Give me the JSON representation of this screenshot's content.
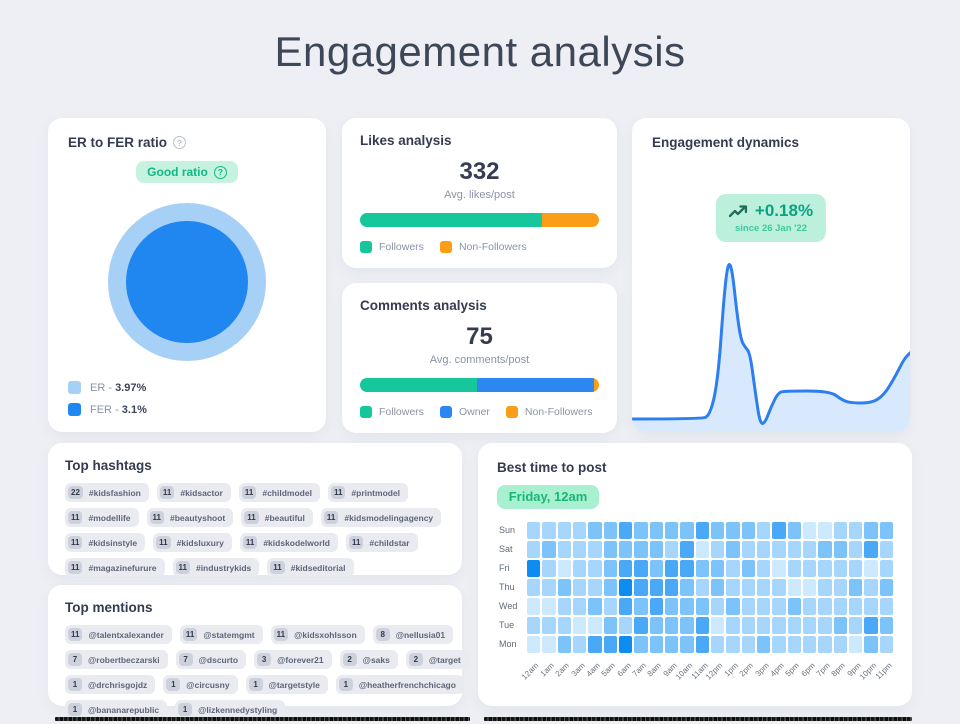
{
  "page": {
    "title": "Engagement analysis"
  },
  "colors": {
    "page_bg": "#edeff4",
    "card_bg": "#ffffff",
    "green": "#15c79b",
    "orange": "#fb9e17",
    "blue": "#2d87f0",
    "er_light_blue": "#a7d0f7",
    "fer_blue": "#2187f0",
    "mint_badge_bg": "#c5f3e0",
    "mint_text": "#12b886",
    "line_blue": "#2d7ef0",
    "line_fill": "#d9e9fd",
    "heat_palette": [
      "#cde9fe",
      "#a6d6fc",
      "#7cc3fa",
      "#4aa9f7",
      "#0d8cf2"
    ]
  },
  "er_card": {
    "title": "ER to FER ratio",
    "badge": "Good ratio",
    "legend": [
      {
        "label": "ER - ",
        "value": "3.97%",
        "color": "#a7d0f7"
      },
      {
        "label": "FER - ",
        "value": "3.1%",
        "color": "#2187f0"
      }
    ]
  },
  "likes_card": {
    "title": "Likes analysis",
    "value": "332",
    "caption": "Avg. likes/post",
    "segments": [
      {
        "name": "Followers",
        "pct": 76,
        "color": "#15c79b"
      },
      {
        "name": "Non-Followers",
        "pct": 24,
        "color": "#fb9e17"
      }
    ]
  },
  "comments_card": {
    "title": "Comments analysis",
    "value": "75",
    "caption": "Avg. comments/post",
    "segments": [
      {
        "name": "Followers",
        "pct": 49,
        "color": "#15c79b"
      },
      {
        "name": "Owner",
        "pct": 49,
        "color": "#2d87f0"
      },
      {
        "name": "Non-Followers",
        "pct": 2,
        "color": "#fb9e17"
      }
    ]
  },
  "dynamics_card": {
    "title": "Engagement dynamics",
    "delta": "+0.18%",
    "since": "since 26 Jan '22",
    "points": [
      [
        0,
        167
      ],
      [
        68,
        167
      ],
      [
        78,
        164
      ],
      [
        86,
        128
      ],
      [
        92,
        44
      ],
      [
        96,
        10
      ],
      [
        100,
        16
      ],
      [
        105,
        62
      ],
      [
        109,
        88
      ],
      [
        113,
        95
      ],
      [
        118,
        101
      ],
      [
        123,
        138
      ],
      [
        128,
        172
      ],
      [
        133,
        171
      ],
      [
        139,
        155
      ],
      [
        146,
        141
      ],
      [
        152,
        139
      ],
      [
        198,
        139
      ],
      [
        210,
        148
      ],
      [
        219,
        151
      ],
      [
        240,
        151
      ],
      [
        252,
        143
      ],
      [
        263,
        125
      ],
      [
        272,
        107
      ],
      [
        278,
        101
      ]
    ]
  },
  "hashtags_card": {
    "title": "Top hashtags",
    "rows": [
      [
        [
          "22",
          "#kidsfashion"
        ],
        [
          "11",
          "#kidsactor"
        ],
        [
          "11",
          "#childmodel"
        ],
        [
          "11",
          "#printmodel"
        ]
      ],
      [
        [
          "11",
          "#modellife"
        ],
        [
          "11",
          "#beautyshoot"
        ],
        [
          "11",
          "#beautiful"
        ],
        [
          "11",
          "#kidsmodelingagency"
        ]
      ],
      [
        [
          "11",
          "#kidsinstyle"
        ],
        [
          "11",
          "#kidsluxury"
        ],
        [
          "11",
          "#kidskodelworld"
        ],
        [
          "11",
          "#childstar"
        ]
      ],
      [
        [
          "11",
          "#magazinefurure"
        ],
        [
          "11",
          "#industrykids"
        ],
        [
          "11",
          "#kidseditorial"
        ]
      ]
    ]
  },
  "mentions_card": {
    "title": "Top mentions",
    "rows": [
      [
        [
          "11",
          "@talentxalexander"
        ],
        [
          "11",
          "@statemgmt"
        ],
        [
          "11",
          "@kidsxohlsson"
        ],
        [
          "8",
          "@nellusia01"
        ]
      ],
      [
        [
          "7",
          "@robertbeczarski"
        ],
        [
          "7",
          "@dscurto"
        ],
        [
          "3",
          "@forever21"
        ],
        [
          "2",
          "@saks"
        ],
        [
          "2",
          "@target"
        ]
      ],
      [
        [
          "1",
          "@drchrisgojdz"
        ],
        [
          "1",
          "@circusny"
        ],
        [
          "1",
          "@targetstyle"
        ],
        [
          "1",
          "@heatherfrenchchicago"
        ]
      ],
      [
        [
          "1",
          "@bananarepublic"
        ],
        [
          "1",
          "@lizkennedystyling"
        ]
      ]
    ]
  },
  "besttime_card": {
    "title": "Best time to post",
    "badge": "Friday, 12am",
    "days": [
      "Sun",
      "Sat",
      "Fri",
      "Thu",
      "Wed",
      "Tue",
      "Mon"
    ],
    "hours": [
      "12am",
      "1am",
      "2am",
      "3am",
      "4am",
      "5am",
      "6am",
      "7am",
      "8am",
      "9am",
      "10am",
      "11am",
      "12pm",
      "1pm",
      "2pm",
      "3pm",
      "4pm",
      "5pm",
      "6pm",
      "7pm",
      "8pm",
      "9pm",
      "10pm",
      "11pm"
    ],
    "matrix": [
      [
        2,
        2,
        2,
        2,
        3,
        3,
        4,
        3,
        3,
        3,
        3,
        4,
        3,
        3,
        3,
        2,
        4,
        3,
        1,
        1,
        2,
        2,
        3,
        3
      ],
      [
        2,
        3,
        2,
        2,
        2,
        3,
        3,
        3,
        3,
        2,
        4,
        1,
        2,
        3,
        2,
        2,
        2,
        2,
        2,
        3,
        3,
        2,
        4,
        2
      ],
      [
        5,
        2,
        1,
        2,
        2,
        3,
        4,
        4,
        3,
        4,
        4,
        3,
        3,
        2,
        3,
        2,
        1,
        2,
        2,
        2,
        2,
        2,
        1,
        2
      ],
      [
        2,
        2,
        3,
        2,
        2,
        3,
        5,
        4,
        4,
        4,
        3,
        2,
        3,
        2,
        2,
        2,
        2,
        1,
        1,
        2,
        2,
        3,
        2,
        3
      ],
      [
        1,
        1,
        2,
        2,
        3,
        2,
        4,
        3,
        4,
        3,
        3,
        3,
        2,
        3,
        2,
        2,
        2,
        3,
        2,
        2,
        2,
        2,
        2,
        2
      ],
      [
        2,
        2,
        2,
        1,
        1,
        3,
        2,
        4,
        3,
        3,
        3,
        4,
        1,
        2,
        2,
        2,
        2,
        2,
        2,
        2,
        3,
        2,
        4,
        3
      ],
      [
        1,
        1,
        3,
        2,
        4,
        4,
        5,
        3,
        3,
        3,
        3,
        4,
        2,
        2,
        2,
        3,
        2,
        2,
        2,
        2,
        2,
        1,
        3,
        2
      ]
    ]
  },
  "chart_data": [
    {
      "type": "pie",
      "title": "ER to FER ratio",
      "series": [
        {
          "name": "ER",
          "value": 3.97
        },
        {
          "name": "FER",
          "value": 3.1
        }
      ],
      "legend_position": "bottom-left",
      "note": "concentric circles, badge: Good ratio"
    },
    {
      "type": "bar",
      "title": "Likes analysis",
      "categories": [
        "Avg. likes/post"
      ],
      "series": [
        {
          "name": "Followers",
          "values": [
            76
          ]
        },
        {
          "name": "Non-Followers",
          "values": [
            24
          ]
        }
      ],
      "total_label": "332",
      "stacked": true,
      "units": "% share of 332 avg likes/post"
    },
    {
      "type": "bar",
      "title": "Comments analysis",
      "categories": [
        "Avg. comments/post"
      ],
      "series": [
        {
          "name": "Followers",
          "values": [
            49
          ]
        },
        {
          "name": "Owner",
          "values": [
            49
          ]
        },
        {
          "name": "Non-Followers",
          "values": [
            2
          ]
        }
      ],
      "total_label": "75",
      "stacked": true,
      "units": "% share of 75 avg comments/post"
    },
    {
      "type": "area",
      "title": "Engagement dynamics",
      "annotation": "+0.18% since 26 Jan '22",
      "x": "time (unlabeled)",
      "y": "engagement (unlabeled)",
      "points_normalized_278x180": [
        [
          0,
          167
        ],
        [
          68,
          167
        ],
        [
          96,
          10
        ],
        [
          113,
          95
        ],
        [
          128,
          172
        ],
        [
          152,
          139
        ],
        [
          198,
          139
        ],
        [
          219,
          151
        ],
        [
          240,
          151
        ],
        [
          278,
          101
        ]
      ],
      "grid": false
    },
    {
      "type": "heatmap",
      "title": "Best time to post",
      "best": "Friday, 12am",
      "rows": [
        "Sun",
        "Sat",
        "Fri",
        "Thu",
        "Wed",
        "Tue",
        "Mon"
      ],
      "cols": [
        "12am",
        "1am",
        "2am",
        "3am",
        "4am",
        "5am",
        "6am",
        "7am",
        "8am",
        "9am",
        "10am",
        "11am",
        "12pm",
        "1pm",
        "2pm",
        "3pm",
        "4pm",
        "5pm",
        "6pm",
        "7pm",
        "8pm",
        "9pm",
        "10pm",
        "11pm"
      ],
      "intensity_scale": "1=lightest,5=darkest"
    }
  ]
}
